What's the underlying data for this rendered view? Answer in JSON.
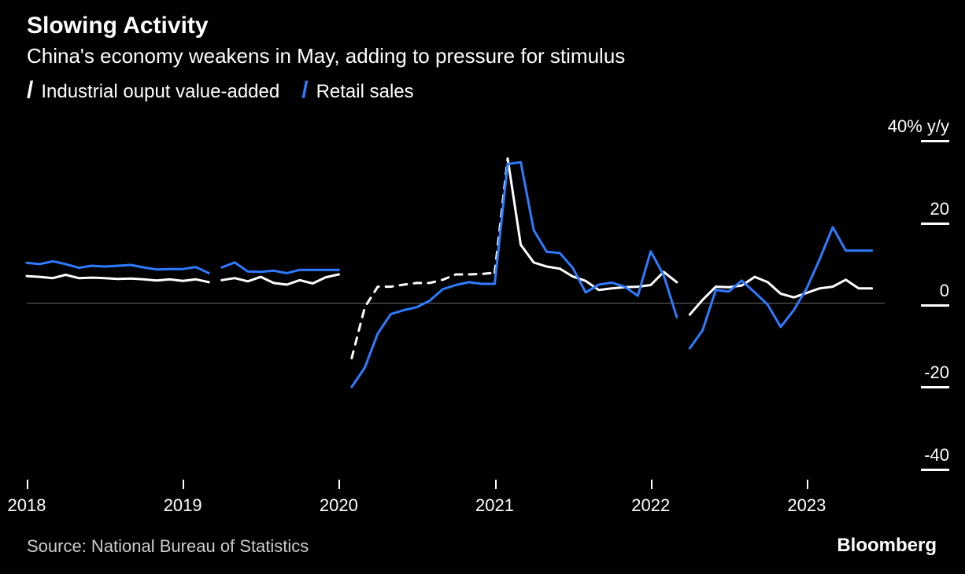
{
  "title": "Slowing Activity",
  "subtitle": "China's economy weakens in May, adding to pressure for stimulus",
  "source": "Source: National Bureau of Statistics",
  "brand": "Bloomberg",
  "chart": {
    "type": "line",
    "background_color": "#000000",
    "axis_color": "#ffffff",
    "zero_line_color": "#666666",
    "line_width": 3.0,
    "title_fontsize": 30,
    "subtitle_fontsize": 26,
    "label_fontsize": 22,
    "legend_fontsize": 24,
    "x_range": [
      2018.0,
      2023.5
    ],
    "y_range": [
      -45,
      45
    ],
    "y_ticks": [
      {
        "value": 40,
        "label": "40% y/y"
      },
      {
        "value": 20,
        "label": "20"
      },
      {
        "value": 0,
        "label": "0"
      },
      {
        "value": -20,
        "label": "-20"
      },
      {
        "value": -40,
        "label": "-40"
      }
    ],
    "x_ticks": [
      {
        "value": 2018,
        "label": "2018"
      },
      {
        "value": 2019,
        "label": "2019"
      },
      {
        "value": 2020,
        "label": "2020"
      },
      {
        "value": 2021,
        "label": "2021"
      },
      {
        "value": 2022,
        "label": "2022"
      },
      {
        "value": 2023,
        "label": "2023"
      }
    ],
    "series": [
      {
        "name": "Industrial ouput value-added",
        "color": "#ffffff",
        "segments": [
          {
            "x": [
              2018.0,
              2018.083,
              2018.167,
              2018.25,
              2018.333,
              2018.417,
              2018.5,
              2018.583,
              2018.667,
              2018.75,
              2018.833,
              2018.917,
              2019.0,
              2019.083,
              2019.167
            ],
            "y": [
              6.5,
              6.3,
              6.0,
              6.8,
              6.0,
              6.1,
              6.0,
              5.8,
              5.9,
              5.7,
              5.4,
              5.7,
              5.3,
              5.7,
              5.0
            ]
          },
          {
            "x": [
              2019.25,
              2019.333,
              2019.417,
              2019.5,
              2019.583,
              2019.667,
              2019.75,
              2019.833,
              2019.917,
              2020.0
            ],
            "y": [
              5.5,
              6.0,
              5.2,
              6.3,
              4.8,
              4.4,
              5.5,
              4.7,
              6.2,
              6.9
            ]
          },
          {
            "x": [
              2020.083,
              2020.167,
              2020.25,
              2020.333,
              2020.417,
              2020.5,
              2020.583,
              2020.667,
              2020.75,
              2020.833,
              2020.917,
              2021.0
            ],
            "y": [
              -13.5,
              -1.1,
              3.9,
              3.9,
              4.4,
              4.8,
              4.8,
              5.6,
              6.9,
              6.9,
              7.0,
              7.3
            ],
            "dash": true
          },
          {
            "x": [
              2021.0,
              2021.083
            ],
            "y": [
              7.3,
              35.1
            ],
            "dash": true
          },
          {
            "x": [
              2021.083,
              2021.167,
              2021.25,
              2021.333,
              2021.417,
              2021.5,
              2021.583,
              2021.667,
              2021.75,
              2021.833,
              2021.917,
              2022.0,
              2022.083,
              2022.167
            ],
            "y": [
              35.1,
              14.1,
              9.8,
              8.8,
              8.3,
              6.4,
              5.3,
              3.1,
              3.5,
              3.8,
              3.9,
              4.3,
              7.5,
              5.0
            ]
          },
          {
            "x": [
              2022.25,
              2022.333,
              2022.417,
              2022.5,
              2022.583,
              2022.667,
              2022.75,
              2022.833,
              2022.917,
              2023.0,
              2023.083,
              2023.167,
              2023.25,
              2023.333,
              2023.417
            ],
            "y": [
              -2.9,
              0.7,
              3.9,
              3.8,
              4.2,
              6.3,
              5.0,
              2.2,
              1.3,
              2.4,
              3.5,
              3.9,
              5.6,
              3.5,
              3.5
            ]
          }
        ]
      },
      {
        "name": "Retail sales",
        "color": "#2e7bff",
        "segments": [
          {
            "x": [
              2018.0,
              2018.083,
              2018.167,
              2018.25,
              2018.333,
              2018.417,
              2018.5,
              2018.583,
              2018.667,
              2018.75,
              2018.833,
              2018.917,
              2019.0,
              2019.083,
              2019.167
            ],
            "y": [
              9.7,
              9.4,
              10.1,
              9.4,
              8.5,
              9.0,
              8.8,
              9.0,
              9.2,
              8.6,
              8.1,
              8.2,
              8.2,
              8.7,
              7.2
            ]
          },
          {
            "x": [
              2019.25,
              2019.333,
              2019.417,
              2019.5,
              2019.583,
              2019.667,
              2019.75,
              2019.833,
              2019.917,
              2020.0
            ],
            "y": [
              8.6,
              9.8,
              7.6,
              7.5,
              7.8,
              7.2,
              8.0,
              8.0,
              8.0,
              8.0
            ]
          },
          {
            "x": [
              2020.083,
              2020.167,
              2020.25,
              2020.333,
              2020.417,
              2020.5,
              2020.583,
              2020.667,
              2020.75,
              2020.833,
              2020.917,
              2021.0,
              2021.083,
              2021.167
            ],
            "y": [
              -20.5,
              -15.8,
              -7.5,
              -2.8,
              -1.8,
              -1.1,
              0.5,
              3.3,
              4.3,
              5.0,
              4.6,
              4.6,
              33.8,
              34.2
            ]
          },
          {
            "x": [
              2021.167,
              2021.25,
              2021.333,
              2021.417,
              2021.5,
              2021.583,
              2021.667,
              2021.75,
              2021.833,
              2021.917,
              2022.0,
              2022.083,
              2022.167
            ],
            "y": [
              34.2,
              17.7,
              12.4,
              12.1,
              8.5,
              2.5,
              4.4,
              4.9,
              3.9,
              1.7,
              12.5,
              6.7,
              -3.5
            ]
          },
          {
            "x": [
              2022.25,
              2022.333,
              2022.417,
              2022.5,
              2022.583,
              2022.667,
              2022.75,
              2022.833,
              2022.917,
              2023.0,
              2023.083,
              2023.167,
              2023.25,
              2023.333,
              2023.417
            ],
            "y": [
              -11.1,
              -6.7,
              3.1,
              2.7,
              5.4,
              2.5,
              -0.5,
              -5.9,
              -1.8,
              3.5,
              10.6,
              18.4,
              12.7,
              12.7,
              12.7
            ]
          }
        ]
      }
    ]
  }
}
